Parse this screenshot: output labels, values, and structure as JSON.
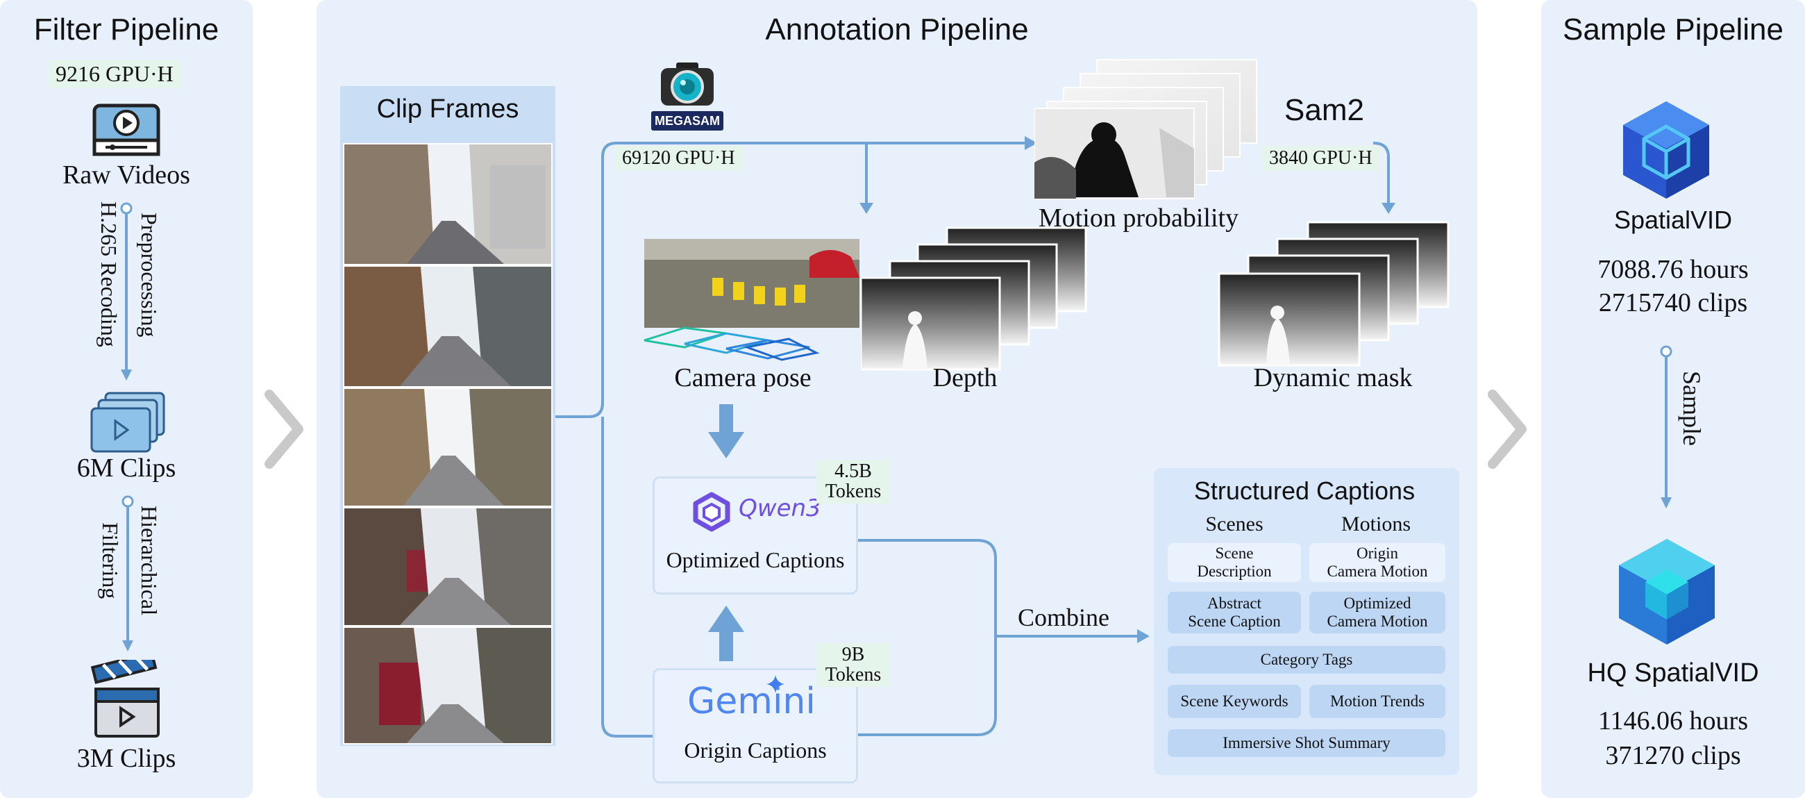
{
  "filter_pipeline": {
    "title": "Filter Pipeline",
    "gpu": "9216 GPU·H",
    "raw_videos": "Raw Videos",
    "step1_a": "Preprocessing",
    "step1_b": "H.265 Recoding",
    "clips_6m": "6M Clips",
    "step2_a": "Hierarchical",
    "step2_b": "Filtering",
    "clips_3m": "3M Clips"
  },
  "annotation_pipeline": {
    "title": "Annotation Pipeline",
    "clip_frames": "Clip Frames",
    "megasam_logo": "MEGASAM",
    "megasam_gpu": "69120 GPU·H",
    "sam2": "Sam2",
    "sam2_gpu": "3840 GPU·H",
    "motion_probability": "Motion probability",
    "camera_pose": "Camera pose",
    "depth": "Depth",
    "dynamic_mask": "Dynamic mask",
    "qwen_logo": "Qwen3",
    "qwen_tokens_a": "4.5B",
    "qwen_tokens_b": "Tokens",
    "optimized_captions": "Optimized Captions",
    "gemini_logo": "Gemini",
    "gemini_tokens_a": "9B",
    "gemini_tokens_b": "Tokens",
    "origin_captions": "Origin Captions",
    "combine": "Combine",
    "structured": {
      "title": "Structured Captions",
      "col1": "Scenes",
      "col2": "Motions",
      "scene_description": "Scene\nDescription",
      "origin_camera_motion": "Origin\nCamera Motion",
      "abstract_scene_caption": "Abstract\nScene Caption",
      "optimized_camera_motion": "Optimized\nCamera Motion",
      "category_tags": "Category Tags",
      "scene_keywords": "Scene Keywords",
      "motion_trends": "Motion Trends",
      "immersive_shot_summary": "Immersive Shot Summary"
    }
  },
  "sample_pipeline": {
    "title": "Sample Pipeline",
    "dataset": "SpatialVID",
    "hours": "7088.76 hours",
    "clips": "2715740 clips",
    "step": "Sample",
    "hq_dataset": "HQ SpatialVID",
    "hq_hours": "1146.06 hours",
    "hq_clips": "371270 clips"
  },
  "colors": {
    "panel": "#e7f0fb",
    "arrow": "#6fa3d6",
    "gpu_bg": "#e6f5ec",
    "cell": "#bcd6f3",
    "cube": "#2f6fd6"
  },
  "icons": [
    "video-player-icon",
    "clips-stack-icon",
    "clapperboard-icon",
    "camera-icon",
    "cube-icon",
    "qwen-logo-icon",
    "gemini-sparkle-icon",
    "chevron-right-icon"
  ]
}
